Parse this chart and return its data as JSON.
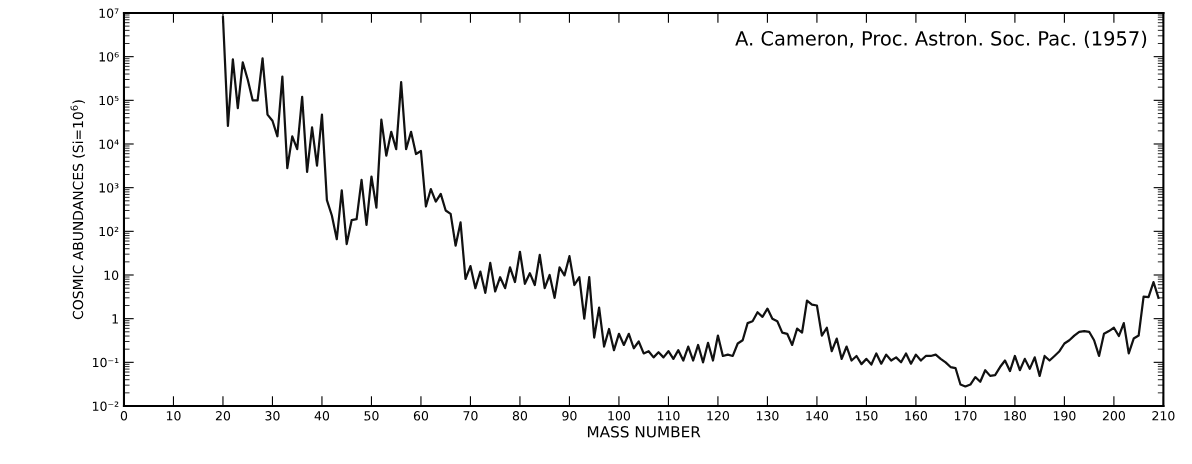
{
  "chart_data": {
    "type": "line",
    "xlabel": "MASS NUMBER",
    "ylabel": "COSMIC ABUNDANCES (Si=10$^{6}$)",
    "annotations": [
      "A. Cameron, Proc. Astron. Soc. Pac. (1957)"
    ],
    "log": "y",
    "grid": false,
    "marker": "none",
    "line_style": "solid",
    "xlim": [
      0,
      210
    ],
    "xticks": [
      0,
      10,
      20,
      30,
      40,
      50,
      60,
      70,
      80,
      90,
      100,
      110,
      120,
      130,
      140,
      150,
      160,
      170,
      180,
      190,
      200,
      210
    ],
    "ylim": [
      0.01,
      10000000
    ],
    "yticks": [
      {
        "value": 0.01,
        "label": "10⁻²"
      },
      {
        "value": 0.1,
        "label": "10⁻¹"
      },
      1,
      10,
      {
        "value": 100,
        "label": "10²"
      },
      {
        "value": 1000,
        "label": "10³"
      },
      {
        "value": 10000,
        "label": "10⁴"
      },
      {
        "value": 100000,
        "label": "10⁵"
      },
      {
        "value": 1000000,
        "label": "10⁶"
      },
      {
        "value": 10000000,
        "label": "10⁷"
      }
    ],
    "x": [
      20,
      21,
      22,
      23,
      24,
      25,
      26,
      27,
      28,
      29,
      30,
      31,
      32,
      33,
      34,
      35,
      36,
      37,
      38,
      39,
      40,
      41,
      42,
      43,
      44,
      45,
      46,
      47,
      48,
      49,
      50,
      51,
      52,
      53,
      54,
      55,
      56,
      57,
      58,
      59,
      60,
      61,
      62,
      63,
      64,
      65,
      66,
      67,
      68,
      69,
      70,
      71,
      72,
      73,
      74,
      75,
      76,
      77,
      78,
      79,
      80,
      81,
      82,
      83,
      84,
      85,
      86,
      87,
      88,
      89,
      90,
      91,
      92,
      93,
      94,
      95,
      96,
      97,
      98,
      99,
      100,
      101,
      102,
      103,
      104,
      105,
      106,
      107,
      108,
      109,
      110,
      111,
      112,
      113,
      114,
      115,
      116,
      117,
      118,
      119,
      120,
      121,
      122,
      123,
      124,
      125,
      126,
      127,
      128,
      129,
      130,
      131,
      132,
      133,
      134,
      135,
      136,
      137,
      138,
      139,
      140,
      141,
      142,
      143,
      144,
      145,
      146,
      147,
      148,
      149,
      150,
      151,
      152,
      153,
      154,
      155,
      156,
      157,
      158,
      159,
      160,
      161,
      162,
      163,
      164,
      165,
      166,
      167,
      168,
      169,
      170,
      171,
      172,
      173,
      174,
      175,
      176,
      177,
      178,
      179,
      180,
      181,
      182,
      183,
      184,
      185,
      186,
      187,
      188,
      189,
      190,
      191,
      192,
      193,
      194,
      195,
      196,
      197,
      198,
      199,
      200,
      201,
      202,
      203,
      204,
      205,
      206,
      207,
      208,
      209
    ],
    "series": [
      {
        "color": "#111111",
        "values": [
          8000000,
          26000,
          870000,
          66000,
          740000,
          300000,
          100000,
          100000,
          910000,
          47000,
          34000,
          15000,
          350000,
          2800,
          15000,
          7600,
          120000,
          2300,
          24000,
          3200,
          47000,
          520,
          230,
          66,
          870,
          51,
          180,
          190,
          1500,
          140,
          1800,
          350,
          36000,
          5400,
          19000,
          7600,
          260000,
          7600,
          19000,
          5900,
          6900,
          370,
          930,
          480,
          720,
          300,
          250,
          47,
          160,
          8.1,
          16,
          5.0,
          12,
          3.9,
          19,
          4.2,
          8.9,
          5.0,
          15,
          6.9,
          34,
          6.3,
          11,
          5.9,
          29,
          5.0,
          10,
          3.0,
          15,
          9.8,
          27,
          5.9,
          8.9,
          1.0,
          8.9,
          0.37,
          1.8,
          0.23,
          0.58,
          0.19,
          0.45,
          0.25,
          0.45,
          0.21,
          0.3,
          0.16,
          0.18,
          0.13,
          0.17,
          0.13,
          0.18,
          0.12,
          0.19,
          0.11,
          0.23,
          0.11,
          0.25,
          0.1,
          0.28,
          0.11,
          0.41,
          0.14,
          0.15,
          0.14,
          0.27,
          0.32,
          0.79,
          0.87,
          1.4,
          1.1,
          1.7,
          1.0,
          0.87,
          0.48,
          0.45,
          0.25,
          0.59,
          0.48,
          2.6,
          2.1,
          2.0,
          0.41,
          0.62,
          0.18,
          0.35,
          0.12,
          0.23,
          0.11,
          0.14,
          0.091,
          0.12,
          0.089,
          0.16,
          0.093,
          0.15,
          0.11,
          0.13,
          0.1,
          0.16,
          0.093,
          0.15,
          0.11,
          0.14,
          0.14,
          0.15,
          0.12,
          0.1,
          0.078,
          0.074,
          0.031,
          0.028,
          0.031,
          0.046,
          0.036,
          0.066,
          0.049,
          0.051,
          0.078,
          0.11,
          0.063,
          0.14,
          0.066,
          0.12,
          0.071,
          0.13,
          0.049,
          0.14,
          0.11,
          0.14,
          0.18,
          0.27,
          0.32,
          0.41,
          0.5,
          0.52,
          0.5,
          0.32,
          0.14,
          0.45,
          0.52,
          0.62,
          0.4,
          0.79,
          0.16,
          0.35,
          0.41,
          3.2,
          3.1,
          6.9,
          3.0
        ]
      }
    ]
  }
}
